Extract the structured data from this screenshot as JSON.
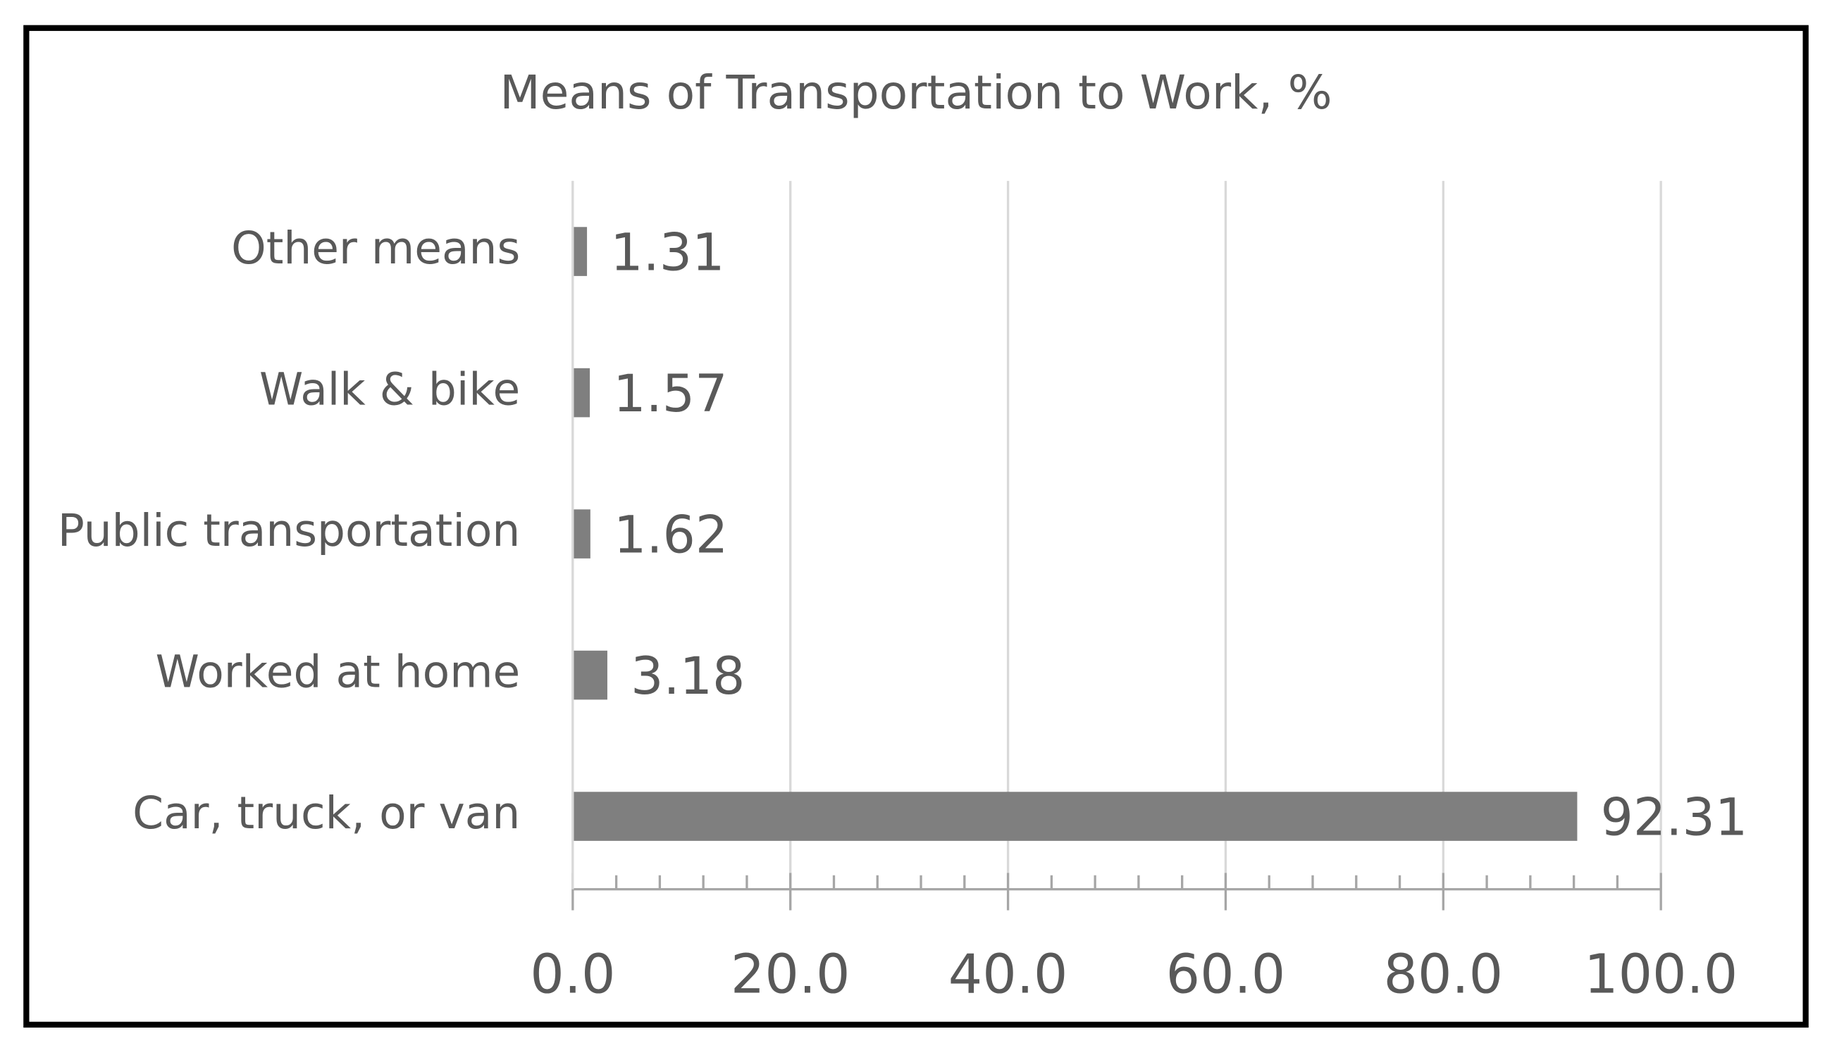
{
  "chart_data": {
    "type": "bar",
    "orientation": "horizontal",
    "title": "Means of Transportation to Work, %",
    "categories": [
      "Car, truck, or van",
      "Worked at home",
      "Public transportation",
      "Walk & bike",
      "Other means"
    ],
    "values": [
      92.31,
      3.18,
      1.62,
      1.57,
      1.31
    ],
    "color": "#7f7f7f",
    "xlim": [
      0,
      100
    ],
    "xticks": [
      {
        "value": 0,
        "label": "0.0"
      },
      {
        "value": 20,
        "label": "20.0"
      },
      {
        "value": 40,
        "label": "40.0"
      },
      {
        "value": 60,
        "label": "60.0"
      },
      {
        "value": 80,
        "label": "80.0"
      },
      {
        "value": 100,
        "label": "100.0"
      }
    ],
    "xminorticks": [
      4,
      8,
      12,
      16,
      24,
      28,
      32,
      36,
      44,
      48,
      52,
      56,
      64,
      68,
      72,
      76,
      84,
      88,
      92,
      96
    ],
    "grid": true
  }
}
